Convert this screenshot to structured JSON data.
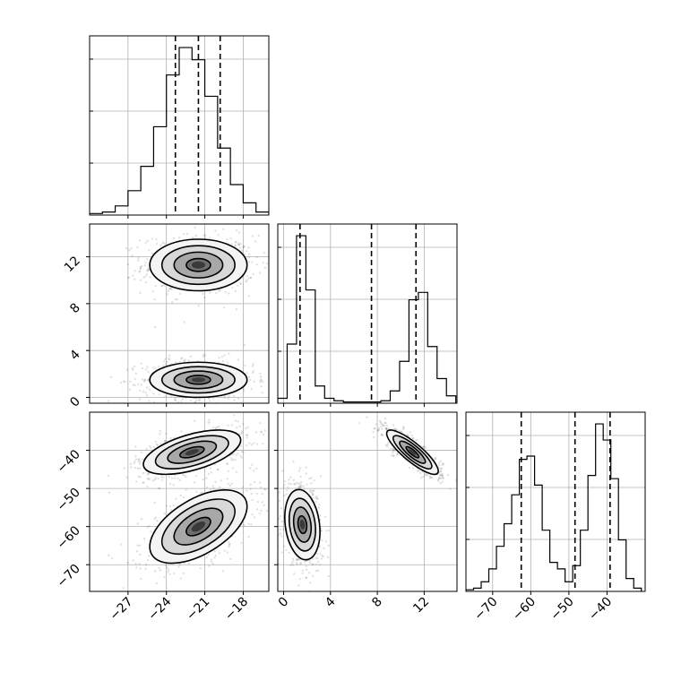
{
  "chart_data": {
    "type": "corner",
    "title": "",
    "parameters": [
      {
        "name": "",
        "range": [
          -30,
          -16
        ],
        "ticks": [
          -27,
          -24,
          -21,
          -18
        ],
        "tick_labels": [
          "−27",
          "−24",
          "−21",
          "−18"
        ]
      },
      {
        "name": "",
        "range": [
          -0.5,
          14.8
        ],
        "ticks": [
          0,
          4,
          8,
          12
        ],
        "tick_labels": [
          "0",
          "4",
          "8",
          "12"
        ]
      },
      {
        "name": "",
        "range": [
          -77,
          -30
        ],
        "ticks": [
          -70,
          -60,
          -50,
          -40
        ],
        "tick_labels": [
          "−70",
          "−60",
          "−50",
          "−40"
        ]
      }
    ],
    "histograms": [
      {
        "param": 0,
        "bin_edges": [
          -30,
          -29,
          -28,
          -27,
          -26,
          -25,
          -24,
          -23,
          -22,
          -21,
          -20,
          -19,
          -18,
          -17,
          -16
        ],
        "counts": [
          0.5,
          1,
          3,
          8,
          16,
          29,
          46,
          55,
          51,
          39,
          22,
          10,
          4,
          1
        ],
        "quantiles": [
          -23.3,
          -21.5,
          -19.8
        ]
      },
      {
        "param": 1,
        "bin_edges": [
          -0.5,
          0.3,
          1.1,
          1.9,
          2.7,
          3.5,
          4.3,
          5.1,
          5.9,
          6.7,
          7.5,
          8.3,
          9.1,
          9.9,
          10.7,
          11.5,
          12.3,
          13.1,
          13.9,
          14.7
        ],
        "counts": [
          2,
          24,
          68,
          46,
          7,
          2,
          1,
          0.5,
          0.5,
          0.5,
          0.5,
          1,
          5,
          17,
          42,
          45,
          23,
          10,
          3
        ],
        "quantiles": [
          1.4,
          7.5,
          11.3
        ]
      },
      {
        "param": 2,
        "bin_edges": [
          -77,
          -75,
          -73,
          -71,
          -69,
          -67,
          -65,
          -63,
          -61,
          -59,
          -57,
          -55,
          -53,
          -51,
          -49,
          -47,
          -45,
          -43,
          -41,
          -39,
          -37,
          -35,
          -33,
          -31
        ],
        "counts": [
          0.5,
          1,
          3,
          7,
          14,
          21,
          30,
          41,
          42,
          33,
          19,
          9,
          7,
          3,
          8,
          19,
          36,
          52,
          47,
          35,
          16,
          4,
          1
        ],
        "quantiles": [
          -62.5,
          -48.4,
          -39.2
        ]
      }
    ],
    "pairs": [
      {
        "x_param": 0,
        "y_param": 1,
        "modes": [
          {
            "center": [
              -21.5,
              11.3
            ],
            "sigma": [
              1.9,
              1.1
            ],
            "weight": 0.5
          },
          {
            "center": [
              -21.5,
              1.5
            ],
            "sigma": [
              1.9,
              0.75
            ],
            "weight": 0.5
          }
        ]
      },
      {
        "x_param": 0,
        "y_param": 2,
        "modes": [
          {
            "center": [
              -22.0,
              -40.5
            ],
            "sigma": [
              1.9,
              2.9
            ],
            "weight": 0.5,
            "tilt": 0.55
          },
          {
            "center": [
              -21.5,
              -60.0
            ],
            "sigma": [
              1.9,
              4.8
            ],
            "weight": 0.5,
            "tilt": 0.55
          }
        ]
      },
      {
        "x_param": 1,
        "y_param": 2,
        "modes": [
          {
            "center": [
              1.6,
              -59.5
            ],
            "sigma": [
              0.75,
              4.6
            ],
            "weight": 0.5,
            "tilt": -0.2
          },
          {
            "center": [
              11.0,
              -40.5
            ],
            "sigma": [
              1.1,
              2.9
            ],
            "weight": 0.5,
            "tilt": -0.85
          }
        ]
      }
    ],
    "contour_levels_sigma": [
      0.5,
      1.0,
      1.5,
      2.0
    ],
    "grid": true,
    "colors": {
      "line": "#000000",
      "grid": "#b0b0b0",
      "density_dark": "#000000",
      "density_light": "#ffffff",
      "scatter": "#444444"
    }
  }
}
